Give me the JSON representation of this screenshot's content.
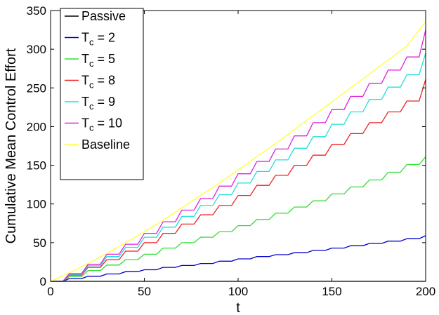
{
  "chart_data": {
    "type": "line",
    "title": "",
    "xlabel": "t",
    "ylabel": "Cumulative Mean Control Effort",
    "xlim": [
      0,
      200
    ],
    "ylim": [
      0,
      350
    ],
    "xticks": [
      0,
      50,
      100,
      150,
      200
    ],
    "yticks": [
      0,
      50,
      100,
      150,
      200,
      250,
      300,
      350
    ],
    "grid": false,
    "legend_position": "top-left",
    "series": [
      {
        "name": "Passive",
        "color": "#000000",
        "step": 0,
        "x": [
          0,
          200
        ],
        "y": [
          0,
          0
        ]
      },
      {
        "name": "Tc = 2",
        "legend_main": "T",
        "legend_sub": "c",
        "legend_rest": " = 2",
        "color": "#0000cc",
        "step": 10,
        "x": [
          0,
          10,
          20,
          30,
          40,
          50,
          60,
          70,
          80,
          90,
          100,
          110,
          120,
          130,
          140,
          150,
          160,
          170,
          180,
          190,
          200
        ],
        "y": [
          0,
          3.5,
          6.5,
          9.5,
          12.5,
          15,
          18,
          20.5,
          23,
          26,
          29,
          32,
          34.5,
          37,
          40,
          43,
          46,
          49,
          52,
          55,
          59
        ]
      },
      {
        "name": "Tc = 5",
        "legend_main": "T",
        "legend_sub": "c",
        "legend_rest": " = 5",
        "color": "#33dd33",
        "step": 10,
        "x": [
          0,
          10,
          20,
          30,
          40,
          50,
          60,
          70,
          80,
          90,
          100,
          110,
          120,
          130,
          140,
          150,
          160,
          170,
          180,
          190,
          200
        ],
        "y": [
          0,
          6,
          14,
          21,
          28,
          35,
          43,
          50,
          57,
          64,
          72,
          80,
          88,
          96,
          104,
          113,
          122,
          131,
          141,
          151,
          161
        ]
      },
      {
        "name": "Tc = 8",
        "legend_main": "T",
        "legend_sub": "c",
        "legend_rest": " = 8",
        "color": "#ee2222",
        "step": 5,
        "x": [
          0,
          10,
          20,
          30,
          40,
          50,
          60,
          70,
          80,
          90,
          100,
          110,
          120,
          130,
          140,
          150,
          160,
          170,
          180,
          190,
          200
        ],
        "y": [
          0,
          8,
          18,
          28,
          39,
          50,
          62,
          74,
          86,
          98,
          111,
          124,
          137,
          150,
          163,
          177,
          191,
          205,
          219,
          233,
          261
        ]
      },
      {
        "name": "Tc = 9",
        "legend_main": "T",
        "legend_sub": "c",
        "legend_rest": " = 9",
        "color": "#22dddd",
        "step": 5,
        "x": [
          0,
          10,
          20,
          30,
          40,
          50,
          60,
          70,
          80,
          90,
          100,
          110,
          120,
          130,
          140,
          150,
          160,
          170,
          180,
          190,
          200
        ],
        "y": [
          0,
          9,
          20,
          32,
          44,
          57,
          70,
          84,
          98,
          112,
          127,
          142,
          157,
          172,
          187,
          203,
          219,
          235,
          251,
          267,
          295
        ]
      },
      {
        "name": "Tc = 10",
        "legend_main": "T",
        "legend_sub": "c",
        "legend_rest": " = 10",
        "color": "#dd22dd",
        "step": 2,
        "x": [
          0,
          10,
          20,
          30,
          40,
          50,
          60,
          70,
          80,
          90,
          100,
          110,
          120,
          130,
          140,
          150,
          160,
          170,
          180,
          190,
          200
        ],
        "y": [
          0,
          10,
          22,
          35,
          48,
          62,
          77,
          92,
          107,
          123,
          139,
          155,
          171,
          188,
          205,
          222,
          239,
          256,
          273,
          290,
          325
        ]
      },
      {
        "name": "Baseline",
        "color": "#ffff33",
        "step": 0,
        "x": [
          0,
          10,
          20,
          30,
          40,
          50,
          60,
          70,
          80,
          90,
          100,
          110,
          120,
          130,
          140,
          150,
          160,
          170,
          180,
          190,
          200
        ],
        "y": [
          0,
          11,
          23,
          36,
          50,
          64,
          79,
          95,
          111,
          127,
          144,
          161,
          178,
          196,
          214,
          232,
          250,
          268,
          286,
          304,
          336
        ]
      }
    ]
  }
}
